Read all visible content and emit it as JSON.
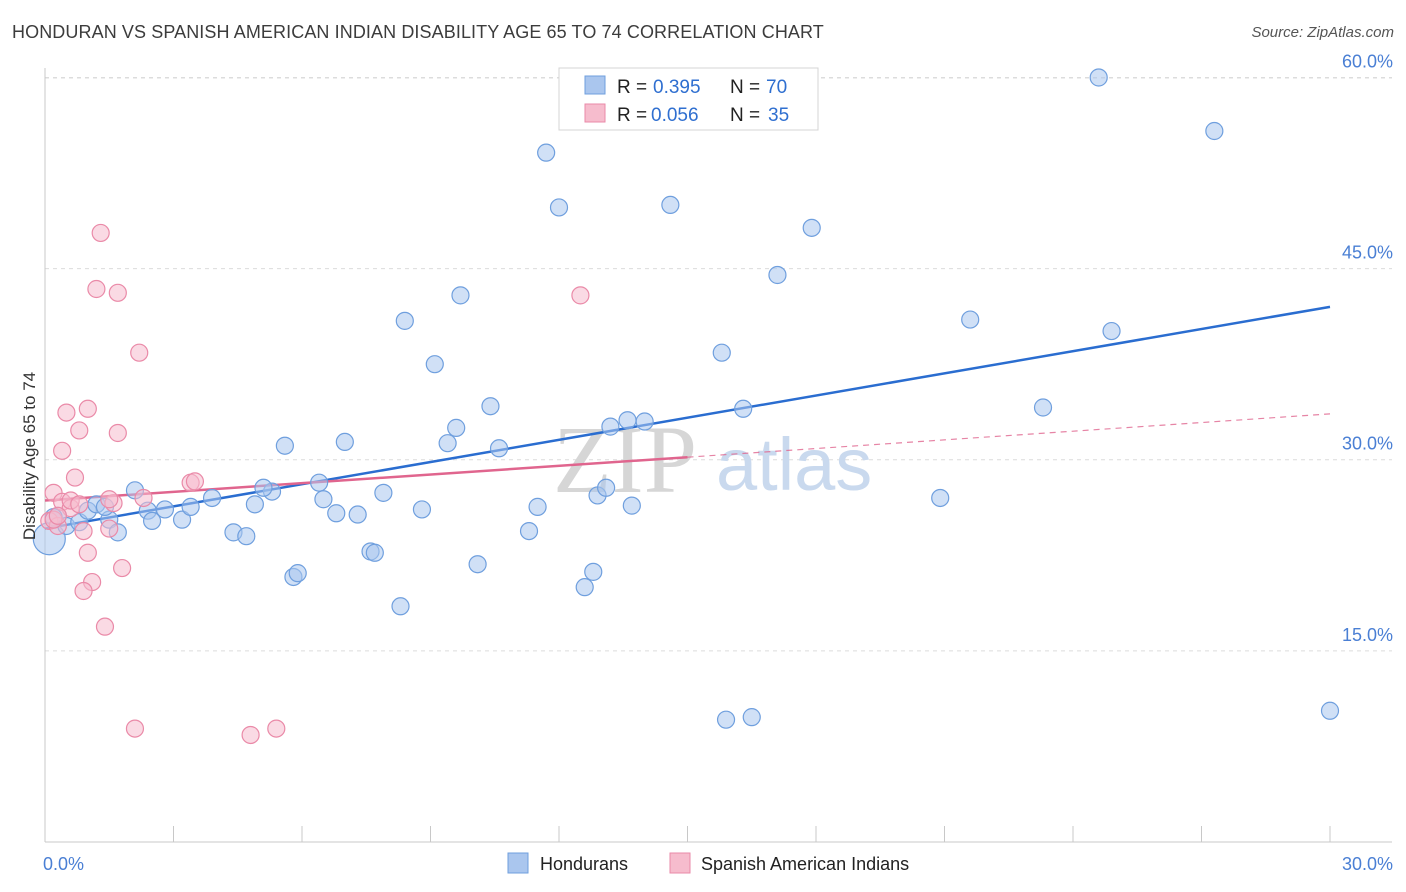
{
  "title": "HONDURAN VS SPANISH AMERICAN INDIAN DISABILITY AGE 65 TO 74 CORRELATION CHART",
  "source": "Source: ZipAtlas.com",
  "watermark": {
    "zip": "ZIP",
    "atlas": "atlas"
  },
  "colors": {
    "blue_fill": "#aac6ee",
    "blue_stroke": "#6f9fde",
    "blue_line": "#2a6dd0",
    "pink_fill": "#f6bccd",
    "pink_stroke": "#ea8aa8",
    "pink_line": "#e0658e",
    "grid": "#dcdcdc",
    "tick_text": "#4a7fd4"
  },
  "legend": {
    "rows": [
      {
        "r_label": "R = ",
        "r_value": "0.395",
        "n_label": "N = ",
        "n_value": "70",
        "color": "#aac6ee"
      },
      {
        "r_label": "R = ",
        "r_value": "0.056",
        "n_label": "N = ",
        "n_value": "35",
        "color": "#f6bccd"
      }
    ]
  },
  "bottom_legend": [
    {
      "label": "Hondurans",
      "color": "#aac6ee"
    },
    {
      "label": "Spanish American Indians",
      "color": "#f6bccd"
    }
  ],
  "chart_data": {
    "type": "scatter",
    "title": "HONDURAN VS SPANISH AMERICAN INDIAN DISABILITY AGE 65 TO 74 CORRELATION CHART",
    "xlabel": "",
    "ylabel": "Disability Age 65 to 74",
    "xlim": [
      0,
      30
    ],
    "ylim": [
      0,
      62
    ],
    "x_tick_labels": [
      "0.0%",
      "30.0%"
    ],
    "y_ticks": [
      15,
      30,
      45,
      60
    ],
    "y_tick_labels": [
      "15.0%",
      "30.0%",
      "45.0%",
      "60.0%"
    ],
    "grid": true,
    "legend_position": "top-center",
    "series": [
      {
        "name": "Hondurans",
        "color": "#aac6ee",
        "trend": {
          "x": [
            0,
            30
          ],
          "y": [
            24.6,
            42.0
          ],
          "style": "solid"
        },
        "points": [
          [
            0.1,
            23.8
          ],
          [
            0.3,
            25.6
          ],
          [
            0.5,
            24.8
          ],
          [
            0.8,
            25.1
          ],
          [
            1.0,
            26.0
          ],
          [
            1.2,
            26.5
          ],
          [
            1.5,
            25.3
          ],
          [
            1.7,
            24.3
          ],
          [
            2.1,
            27.6
          ],
          [
            2.4,
            26.0
          ],
          [
            2.5,
            25.2
          ],
          [
            2.8,
            26.1
          ],
          [
            3.2,
            25.3
          ],
          [
            3.4,
            26.3
          ],
          [
            3.9,
            27.0
          ],
          [
            4.4,
            24.3
          ],
          [
            4.7,
            24.0
          ],
          [
            4.9,
            26.5
          ],
          [
            5.3,
            27.5
          ],
          [
            5.6,
            31.1
          ],
          [
            5.8,
            20.8
          ],
          [
            5.9,
            21.1
          ],
          [
            6.4,
            28.2
          ],
          [
            6.5,
            26.9
          ],
          [
            6.8,
            25.8
          ],
          [
            7.0,
            31.4
          ],
          [
            7.3,
            25.7
          ],
          [
            7.6,
            22.8
          ],
          [
            7.7,
            22.7
          ],
          [
            7.9,
            27.4
          ],
          [
            8.3,
            18.5
          ],
          [
            8.4,
            40.9
          ],
          [
            8.8,
            26.1
          ],
          [
            9.1,
            37.5
          ],
          [
            9.4,
            31.3
          ],
          [
            9.6,
            32.5
          ],
          [
            9.7,
            42.9
          ],
          [
            10.1,
            21.8
          ],
          [
            10.4,
            34.2
          ],
          [
            10.6,
            30.9
          ],
          [
            11.3,
            24.4
          ],
          [
            11.5,
            26.3
          ],
          [
            11.7,
            54.1
          ],
          [
            12.0,
            49.8
          ],
          [
            12.6,
            20.0
          ],
          [
            12.8,
            21.2
          ],
          [
            12.9,
            27.2
          ],
          [
            13.1,
            27.8
          ],
          [
            13.2,
            32.6
          ],
          [
            13.6,
            33.1
          ],
          [
            13.7,
            26.4
          ],
          [
            14.0,
            33.0
          ],
          [
            14.6,
            50.0
          ],
          [
            15.5,
            58.3
          ],
          [
            15.8,
            38.4
          ],
          [
            15.9,
            9.6
          ],
          [
            16.3,
            34.0
          ],
          [
            16.5,
            9.8
          ],
          [
            17.1,
            44.5
          ],
          [
            17.9,
            48.2
          ],
          [
            20.9,
            27.0
          ],
          [
            21.6,
            41.0
          ],
          [
            23.3,
            34.1
          ],
          [
            24.6,
            60.0
          ],
          [
            24.9,
            40.1
          ],
          [
            27.3,
            55.8
          ],
          [
            30.0,
            10.3
          ],
          [
            0.2,
            25.5
          ],
          [
            1.4,
            26.3
          ],
          [
            5.1,
            27.8
          ]
        ]
      },
      {
        "name": "Spanish American Indians",
        "color": "#f6bccd",
        "trend": {
          "x": [
            0,
            15
          ],
          "y": [
            26.8,
            30.2
          ],
          "style": "solid",
          "extended": {
            "x": [
              15,
              30
            ],
            "y": [
              30.2,
              33.6
            ],
            "style": "dashed"
          }
        },
        "points": [
          [
            0.1,
            25.2
          ],
          [
            0.2,
            27.4
          ],
          [
            0.3,
            24.8
          ],
          [
            0.4,
            26.7
          ],
          [
            0.5,
            33.7
          ],
          [
            0.6,
            26.2
          ],
          [
            0.7,
            28.6
          ],
          [
            0.8,
            32.3
          ],
          [
            0.9,
            24.4
          ],
          [
            1.0,
            22.7
          ],
          [
            1.1,
            20.4
          ],
          [
            1.2,
            43.4
          ],
          [
            1.3,
            47.8
          ],
          [
            1.4,
            16.9
          ],
          [
            1.5,
            24.6
          ],
          [
            1.6,
            26.6
          ],
          [
            1.7,
            43.1
          ],
          [
            1.8,
            21.5
          ],
          [
            2.1,
            8.9
          ],
          [
            2.2,
            38.4
          ],
          [
            2.3,
            27.0
          ],
          [
            3.4,
            28.2
          ],
          [
            3.5,
            28.3
          ],
          [
            4.8,
            8.4
          ],
          [
            5.4,
            8.9
          ],
          [
            12.5,
            42.9
          ],
          [
            0.4,
            30.7
          ],
          [
            0.9,
            19.7
          ],
          [
            1.7,
            32.1
          ],
          [
            1.0,
            34.0
          ],
          [
            0.2,
            25.3
          ],
          [
            0.6,
            26.8
          ],
          [
            1.5,
            26.9
          ],
          [
            0.3,
            25.6
          ],
          [
            0.8,
            26.5
          ]
        ]
      }
    ]
  }
}
